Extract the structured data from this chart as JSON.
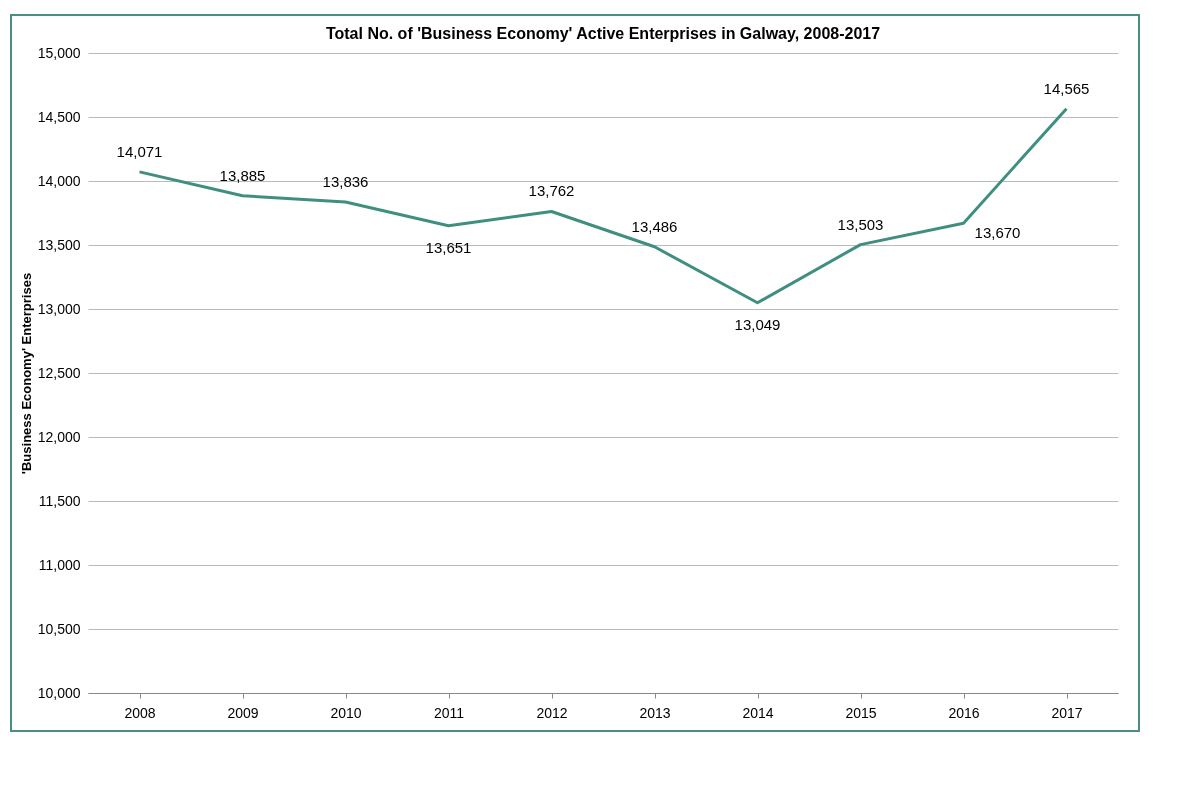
{
  "chart_data": {
    "type": "line",
    "title": "Total No. of 'Business Economy' Active Enterprises in Galway, 2008-2017",
    "ylabel": "'Business Economy' Enterprises",
    "categories": [
      "2008",
      "2009",
      "2010",
      "2011",
      "2012",
      "2013",
      "2014",
      "2015",
      "2016",
      "2017"
    ],
    "series": [
      {
        "color": "#3f8f80",
        "values": [
          14071,
          13885,
          13836,
          13651,
          13762,
          13486,
          13049,
          13503,
          13670,
          14565
        ],
        "value_labels": [
          "14,071",
          "13,885",
          "13,836",
          "13,651",
          "13,762",
          "13,486",
          "13,049",
          "13,503",
          "13,670",
          "14,565"
        ]
      }
    ],
    "ylim": [
      10000,
      15000
    ],
    "yticks": [
      {
        "value": 10000,
        "label": "10,000"
      },
      {
        "value": 10500,
        "label": "10,500"
      },
      {
        "value": 11000,
        "label": "11,000"
      },
      {
        "value": 11500,
        "label": "11,500"
      },
      {
        "value": 12000,
        "label": "12,000"
      },
      {
        "value": 12500,
        "label": "12,500"
      },
      {
        "value": 13000,
        "label": "13,000"
      },
      {
        "value": 13500,
        "label": "13,500"
      },
      {
        "value": 14000,
        "label": "14,000"
      },
      {
        "value": 14500,
        "label": "14,500"
      },
      {
        "value": 15000,
        "label": "15,000"
      }
    ],
    "grid": "y",
    "marker": "none",
    "line_style": "solid"
  }
}
